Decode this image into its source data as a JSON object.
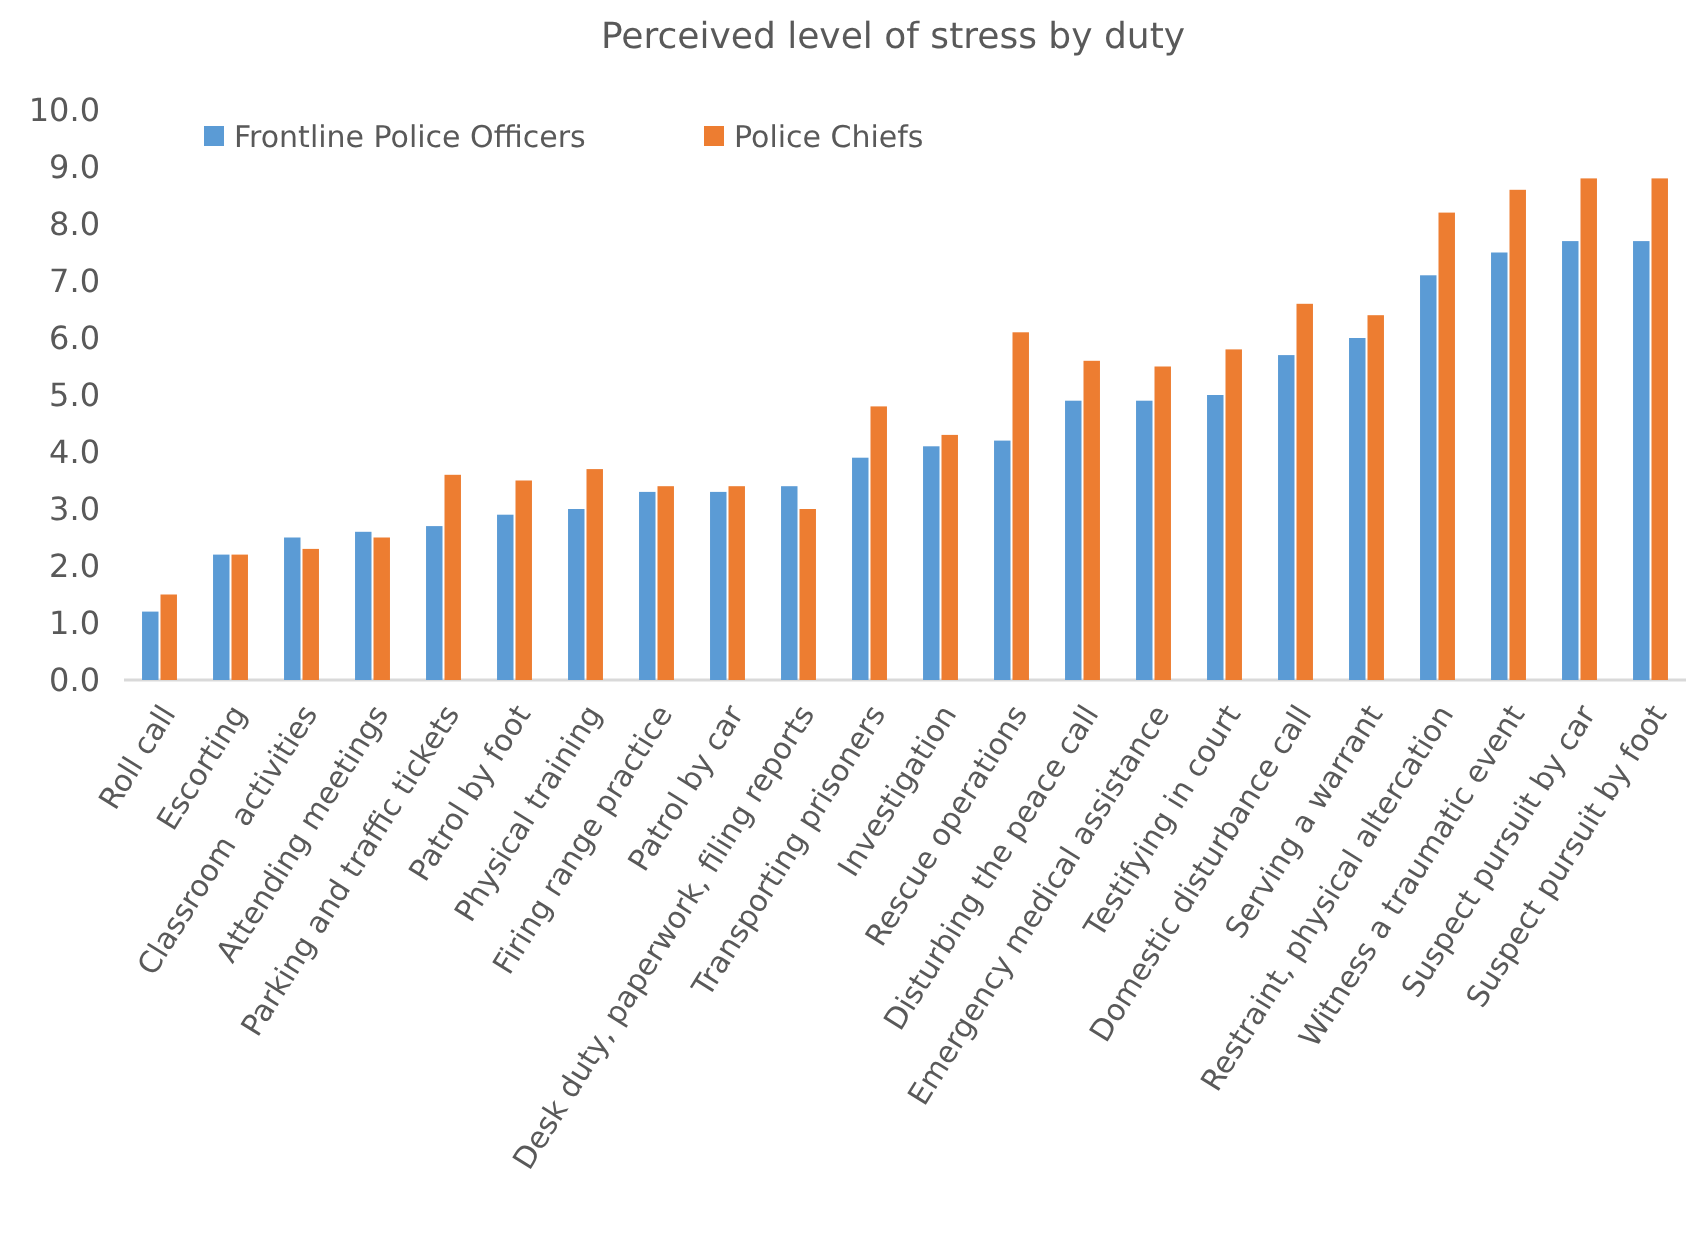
{
  "chart_data": {
    "type": "bar",
    "title": "Perceived level of stress by duty",
    "categories": [
      "Roll call",
      "Escorting",
      "Classroom  activities",
      "Attending meetings",
      "Parking and traffic tickets",
      "Patrol by foot",
      "Physical training",
      "Firing range practice",
      "Patrol by car",
      "Desk duty, paperwork, filing reports",
      "Transporting prisoners",
      "Investigation",
      "Rescue operations",
      "Disturbing the peace call",
      "Emergency medical assistance",
      "Testifying in court",
      "Domestic disturbance call",
      "Serving a warrant",
      "Restraint, physical altercation",
      "Witness a traumatic event",
      "Suspect pursuit by car",
      "Suspect pursuit by foot"
    ],
    "series": [
      {
        "name": "Frontline Police Officers",
        "color": "#5b9bd5",
        "values": [
          1.2,
          2.2,
          2.5,
          2.6,
          2.7,
          2.9,
          3.0,
          3.3,
          3.3,
          3.4,
          3.9,
          4.1,
          4.2,
          4.9,
          4.9,
          5.0,
          5.7,
          6.0,
          7.1,
          7.5,
          7.7,
          7.7
        ]
      },
      {
        "name": "Police Chiefs",
        "color": "#ed7d31",
        "values": [
          1.5,
          2.2,
          2.3,
          2.5,
          3.6,
          3.5,
          3.7,
          3.4,
          3.4,
          3.0,
          4.8,
          4.3,
          6.1,
          5.6,
          5.5,
          5.8,
          6.6,
          6.4,
          8.2,
          8.6,
          8.8,
          8.8
        ]
      }
    ],
    "ylim": [
      0,
      10
    ],
    "yticks": [
      {
        "value": 0,
        "label": "0.0"
      },
      {
        "value": 1,
        "label": "1.0"
      },
      {
        "value": 2,
        "label": "2.0"
      },
      {
        "value": 3,
        "label": "3.0"
      },
      {
        "value": 4,
        "label": "4.0"
      },
      {
        "value": 5,
        "label": "5.0"
      },
      {
        "value": 6,
        "label": "6.0"
      },
      {
        "value": 7,
        "label": "7.0"
      },
      {
        "value": 8,
        "label": "8.0"
      },
      {
        "value": 9,
        "label": "9.0"
      },
      {
        "value": 10,
        "label": "10.0"
      }
    ],
    "grid": false,
    "legend": "top left"
  }
}
